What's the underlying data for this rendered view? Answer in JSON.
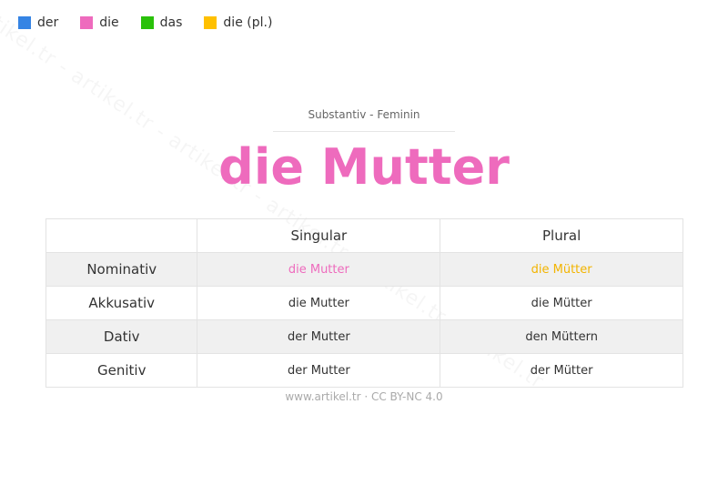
{
  "watermark": "artikel.tr - artikel.tr - artikel.tr - artikel.tr - artikel.tr - artikel.tr",
  "legend": [
    {
      "label": "der",
      "color": "#3584e4"
    },
    {
      "label": "die",
      "color": "#ee6bbd"
    },
    {
      "label": "das",
      "color": "#2ac10a"
    },
    {
      "label": "die (pl.)",
      "color": "#ffc000"
    }
  ],
  "header": {
    "subtitle": "Substantiv  -  Feminin",
    "title": "die Mutter",
    "title_color": "#ee6bbd"
  },
  "table": {
    "columns": [
      "",
      "Singular",
      "Plural"
    ],
    "rows": [
      {
        "case": "Nominativ",
        "singular": "die Mutter",
        "plural": "die Mütter"
      },
      {
        "case": "Akkusativ",
        "singular": "die Mutter",
        "plural": "die Mütter"
      },
      {
        "case": "Dativ",
        "singular": "der Mutter",
        "plural": "den Müttern"
      },
      {
        "case": "Genitiv",
        "singular": "der Mutter",
        "plural": "der Mütter"
      }
    ],
    "nominative_singular_color": "#ee6bbd",
    "nominative_plural_color": "#ffc000"
  },
  "footer": "www.artikel.tr · CC BY-NC 4.0"
}
